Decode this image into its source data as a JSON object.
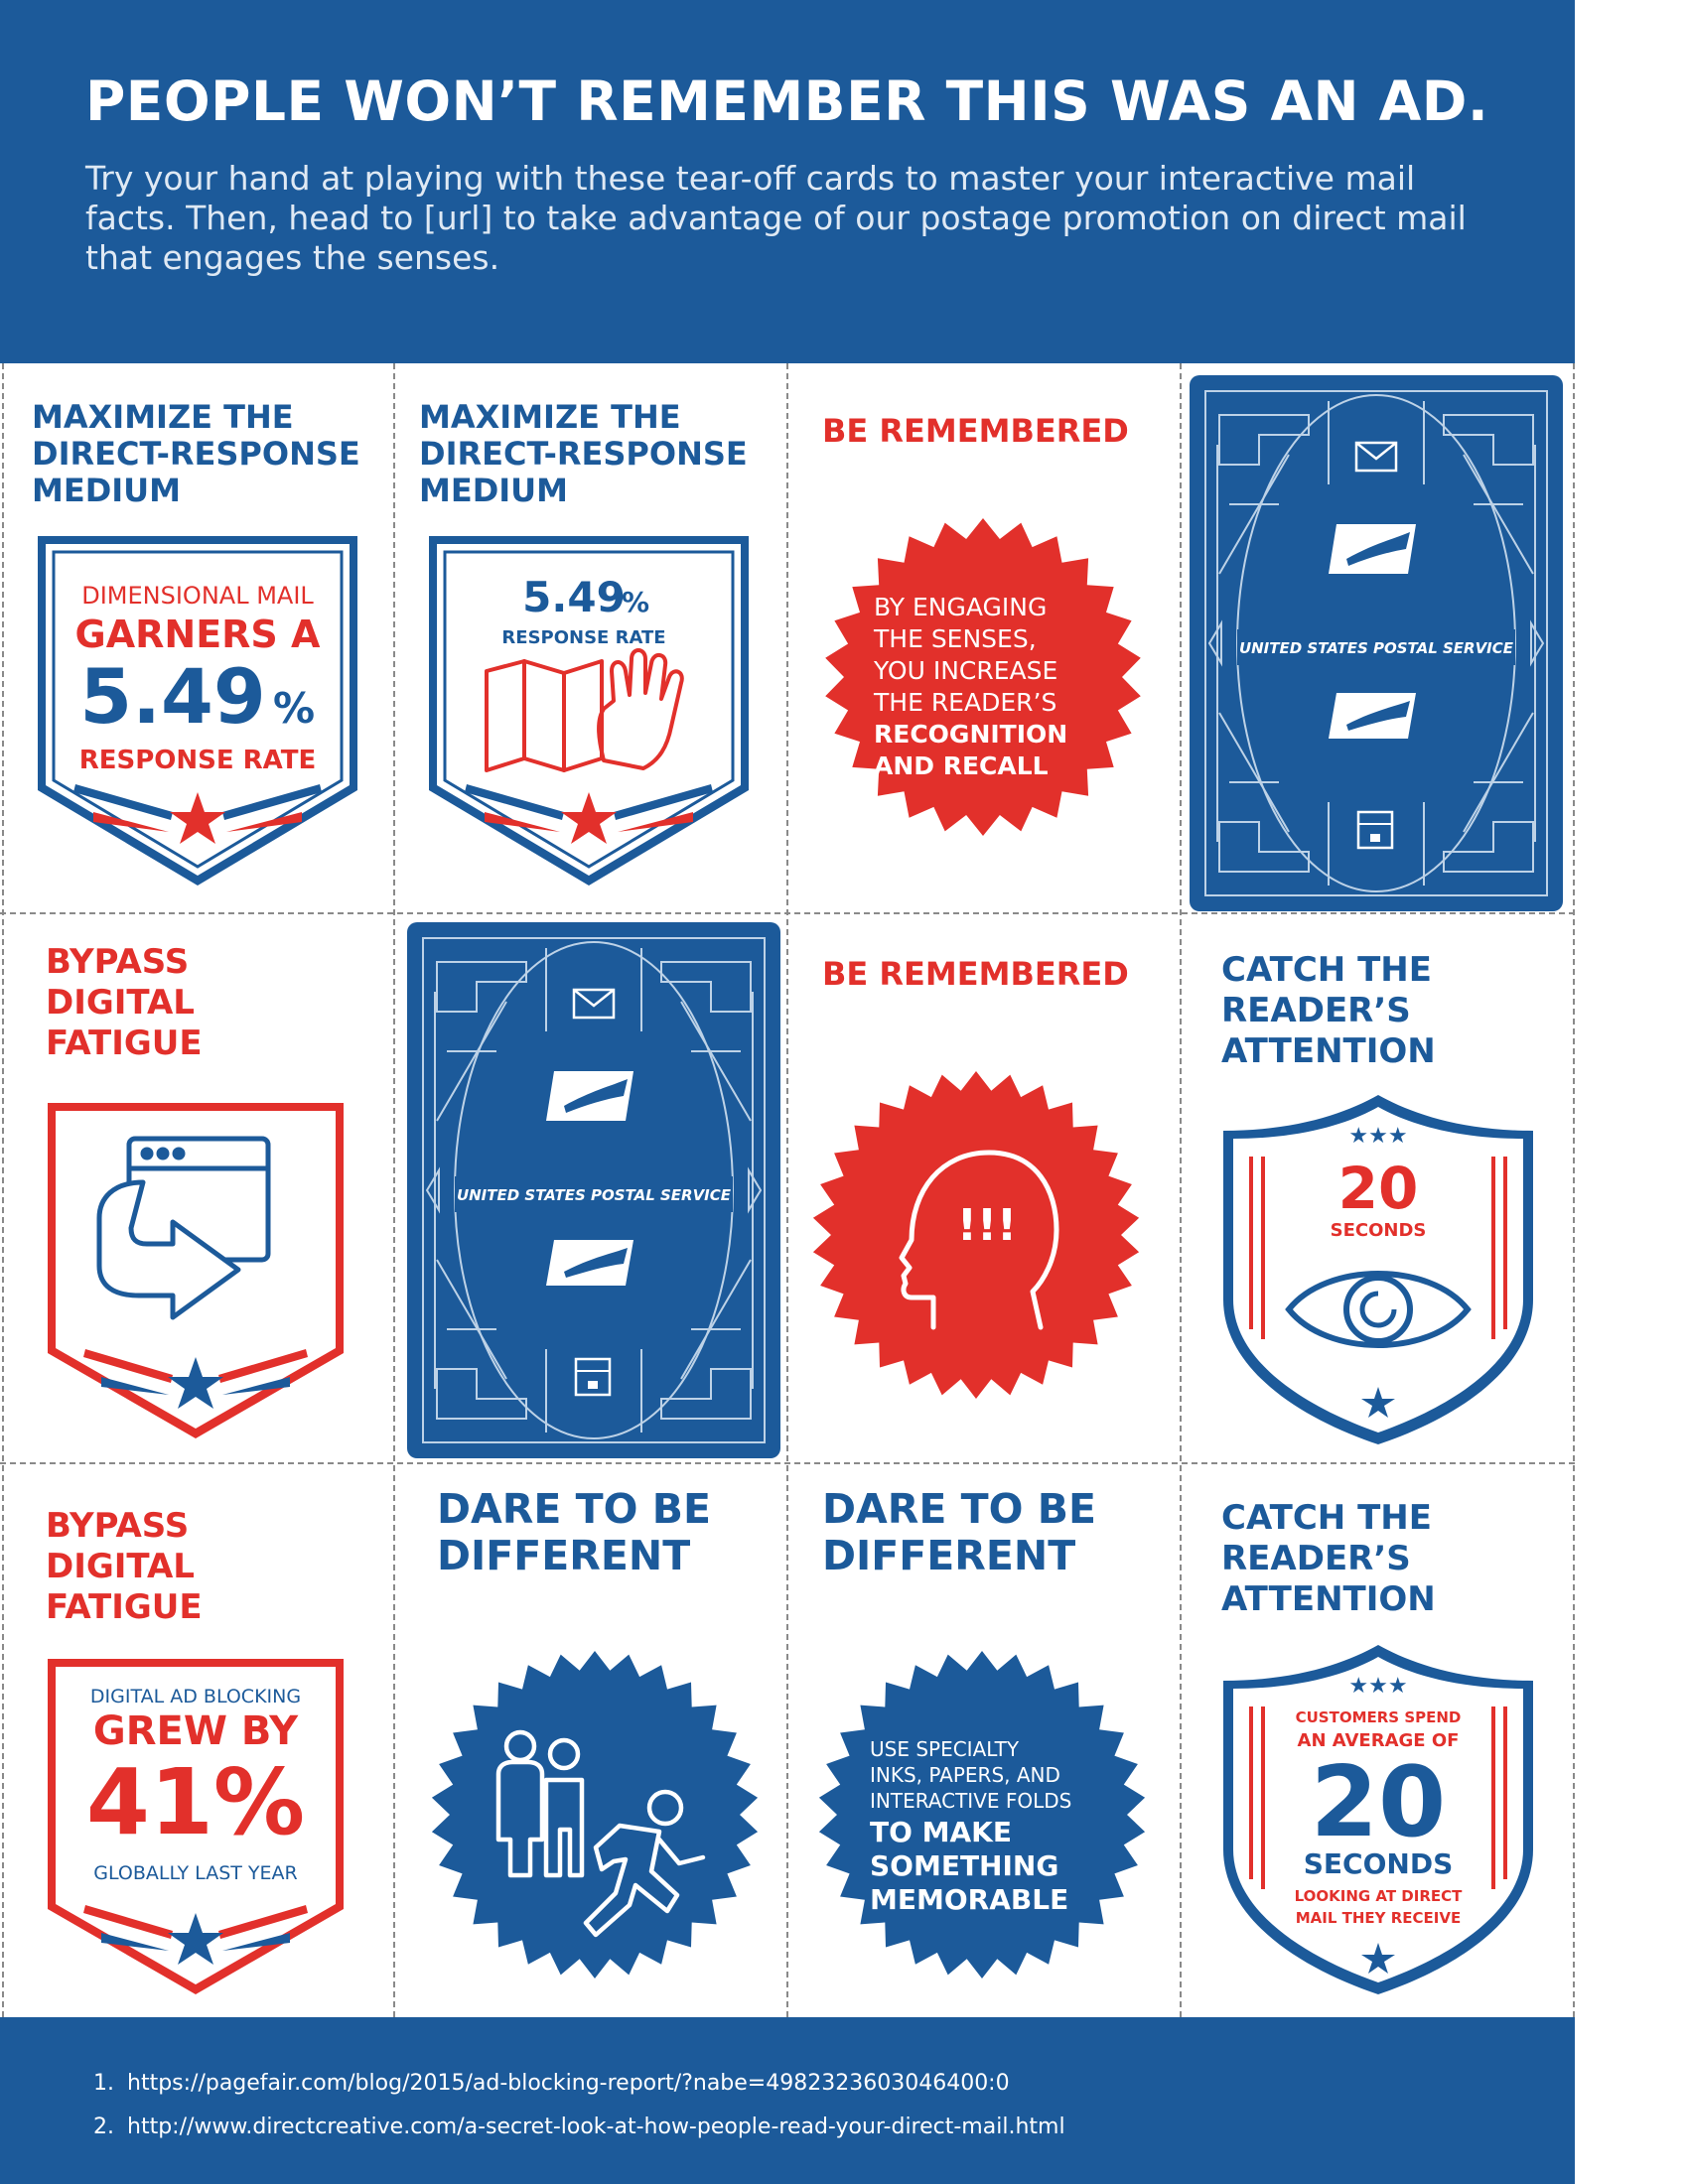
{
  "header": {
    "headline": "PEOPLE WON’T REMEMBER THIS WAS AN AD.",
    "intro": "Try your hand at playing with these tear-off cards to master your interactive mail facts. Then, head to [url] to take advantage of our postage promotion on direct mail that engages the senses."
  },
  "colors": {
    "blue": "#1c5a9a",
    "red": "#e2302b",
    "white": "#ffffff"
  },
  "cards": {
    "r1c1": {
      "title": "MAXIMIZE THE\nDIRECT-RESPONSE\nMEDIUM",
      "line1": "DIMENSIONAL MAIL",
      "line2": "GARNERS A",
      "value": "5.49",
      "unit": "%",
      "line3": "RESPONSE RATE",
      "icon": "star-icon"
    },
    "r1c2": {
      "title": "MAXIMIZE THE\nDIRECT-RESPONSE\nMEDIUM",
      "value": "5.49",
      "unit": "%",
      "line1": "RESPONSE RATE",
      "icon": "hand-unfolding-map-icon"
    },
    "r1c3": {
      "title": "BE REMEMBERED",
      "text_plain": [
        "BY ENGAGING",
        "THE SENSES,",
        "YOU INCREASE",
        "THE READER’S"
      ],
      "text_bold": [
        "RECOGNITION",
        "AND RECALL"
      ]
    },
    "r1c4": {
      "back_label": "UNITED STATES POSTAL SERVICE",
      "icons": [
        "envelope-icon",
        "eagle-logo-icon",
        "package-icon"
      ]
    },
    "r2c1": {
      "title": "BYPASS\nDIGITAL\nFATIGUE",
      "icon": "browser-window-arrow-icon"
    },
    "r2c2": {
      "back_label": "UNITED STATES POSTAL SERVICE",
      "icons": [
        "envelope-icon",
        "eagle-logo-icon",
        "package-icon"
      ]
    },
    "r2c3": {
      "title": "BE REMEMBERED",
      "head_marks": "!!!",
      "icon": "head-profile-icon"
    },
    "r2c4": {
      "title": "CATCH THE\nREADER’S\nATTENTION",
      "stars": "★★★",
      "value": "20",
      "unit": "SECONDS",
      "icon": "eye-icon"
    },
    "r3c1": {
      "title": "BYPASS\nDIGITAL\nFATIGUE",
      "line1": "DIGITAL AD BLOCKING",
      "line2": "GREW BY",
      "value": "41%",
      "line3": "GLOBALLY LAST YEAR"
    },
    "r3c2": {
      "title": "DARE TO BE\nDIFFERENT",
      "icon": "people-running-icon"
    },
    "r3c3": {
      "title": "DARE TO BE\nDIFFERENT",
      "text_plain": [
        "USE SPECIALTY",
        "INKS, PAPERS, AND",
        "INTERACTIVE FOLDS"
      ],
      "text_bold": [
        "TO MAKE",
        "SOMETHING",
        "MEMORABLE"
      ]
    },
    "r3c4": {
      "title": "CATCH THE\nREADER’S\nATTENTION",
      "stars": "★★★",
      "line1": "CUSTOMERS SPEND",
      "line2": "AN AVERAGE OF",
      "value": "20",
      "unit": "SECONDS",
      "line3": "LOOKING AT DIRECT",
      "line4": "MAIL THEY RECEIVE"
    }
  },
  "footnotes": [
    {
      "num": "1.",
      "text": "https://pagefair.com/blog/2015/ad-blocking-report/?nabe=4982323603046400:0"
    },
    {
      "num": "2.",
      "text": "http://www.directcreative.com/a-secret-look-at-how-people-read-your-direct-mail.html"
    }
  ]
}
